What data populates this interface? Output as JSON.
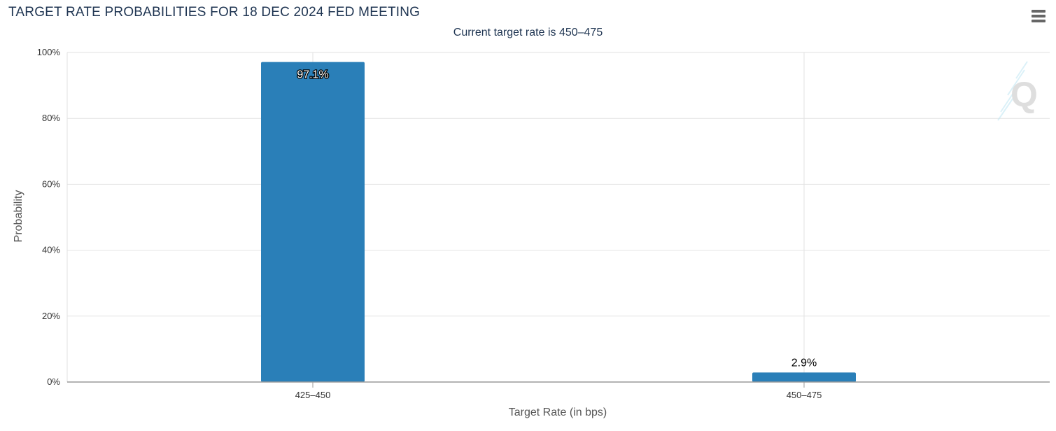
{
  "chart_data": {
    "type": "bar",
    "title": "TARGET RATE PROBABILITIES FOR 18 DEC 2024 FED MEETING",
    "subtitle": "Current target rate is 450–475",
    "xlabel": "Target Rate (in bps)",
    "ylabel": "Probability",
    "categories": [
      "425–450",
      "450–475"
    ],
    "values": [
      97.1,
      2.9
    ],
    "data_labels": [
      "97.1%",
      "2.9%"
    ],
    "ylim": [
      0,
      100
    ],
    "yticks": [
      0,
      20,
      40,
      60,
      80,
      100
    ],
    "ytick_labels": [
      "0%",
      "20%",
      "40%",
      "60%",
      "80%",
      "100%"
    ],
    "grid": true,
    "legend": "none",
    "bar_color": "#2a7fb8"
  },
  "toolbar": {
    "menu_icon": "hamburger-menu-icon"
  },
  "watermark": {
    "icon": "quikstrike-q-logo-icon"
  }
}
